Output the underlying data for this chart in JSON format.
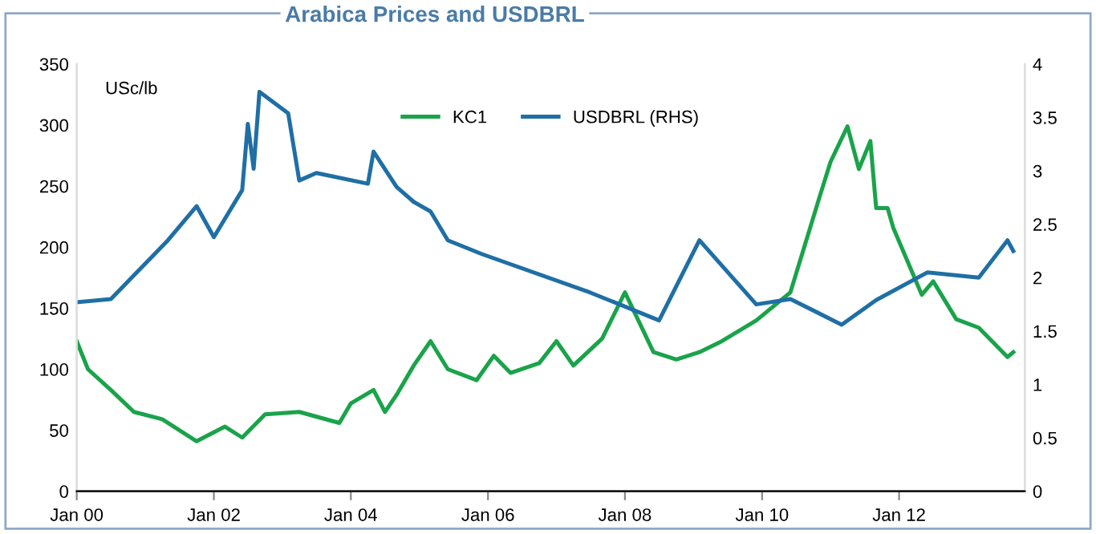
{
  "chart_data": {
    "type": "line",
    "title": "Arabica Prices and USDBRL",
    "ylabel": "USc/lb",
    "xlim": [
      "2000-01",
      "2013-11"
    ],
    "xticks": [
      {
        "value": "2000-01",
        "label": "Jan 00"
      },
      {
        "value": "2002-01",
        "label": "Jan 02"
      },
      {
        "value": "2004-01",
        "label": "Jan 04"
      },
      {
        "value": "2006-01",
        "label": "Jan 06"
      },
      {
        "value": "2008-01",
        "label": "Jan 08"
      },
      {
        "value": "2010-01",
        "label": "Jan 10"
      },
      {
        "value": "2012-01",
        "label": "Jan 12"
      }
    ],
    "ylim": [
      0,
      350
    ],
    "yticks": [
      0,
      50,
      100,
      150,
      200,
      250,
      300,
      350
    ],
    "y2lim": [
      0,
      4
    ],
    "y2ticks": [
      0,
      0.5,
      1,
      1.5,
      2,
      2.5,
      3,
      3.5,
      4
    ],
    "grid": false,
    "legend": "top",
    "marker": "none",
    "line_style": "solid",
    "series": [
      {
        "name": "KC1",
        "color": "#1aa34a",
        "x": [
          "2000-01",
          "2000-03",
          "2000-07",
          "2000-11",
          "2001-04",
          "2001-10",
          "2002-03",
          "2002-06",
          "2002-10",
          "2003-04",
          "2003-11",
          "2004-01",
          "2004-05",
          "2004-07",
          "2004-09",
          "2004-12",
          "2005-03",
          "2005-06",
          "2005-11",
          "2006-02",
          "2006-05",
          "2006-10",
          "2007-01",
          "2007-04",
          "2007-09",
          "2008-01",
          "2008-06",
          "2008-10",
          "2009-02",
          "2009-06",
          "2009-12",
          "2010-06",
          "2010-11",
          "2011-01",
          "2011-04",
          "2011-06",
          "2011-08",
          "2011-09",
          "2011-11",
          "2011-12",
          "2012-05",
          "2012-07",
          "2012-11",
          "2013-03",
          "2013-08",
          "2013-09"
        ],
        "values": [
          123,
          100,
          83,
          65,
          59,
          41,
          53,
          44,
          63,
          65,
          56,
          72,
          83,
          65,
          79,
          103,
          123,
          100,
          91,
          111,
          97,
          105,
          123,
          103,
          125,
          163,
          114,
          108,
          114,
          123,
          140,
          163,
          240,
          270,
          299,
          264,
          287,
          232,
          232,
          216,
          161,
          172,
          141,
          134,
          110,
          114
        ]
      },
      {
        "name": "USDBRL (RHS)",
        "color": "#1f6fa5",
        "axis": "y2",
        "x": [
          "2000-01",
          "2000-07",
          "2001-05",
          "2001-10",
          "2002-01",
          "2002-06",
          "2002-07",
          "2002-08",
          "2002-09",
          "2003-02",
          "2003-04",
          "2003-07",
          "2004-04",
          "2004-05",
          "2004-09",
          "2004-12",
          "2005-03",
          "2005-06",
          "2005-12",
          "2007-07",
          "2008-07",
          "2009-02",
          "2009-12",
          "2010-06",
          "2011-03",
          "2011-09",
          "2012-06",
          "2013-03",
          "2013-08",
          "2013-09"
        ],
        "values": [
          1.77,
          1.8,
          2.35,
          2.67,
          2.38,
          2.82,
          3.44,
          3.02,
          3.74,
          3.54,
          2.91,
          2.98,
          2.88,
          3.18,
          2.85,
          2.71,
          2.62,
          2.35,
          2.22,
          1.86,
          1.6,
          2.35,
          1.75,
          1.8,
          1.56,
          1.79,
          2.05,
          2.0,
          2.35,
          2.25
        ]
      }
    ]
  }
}
